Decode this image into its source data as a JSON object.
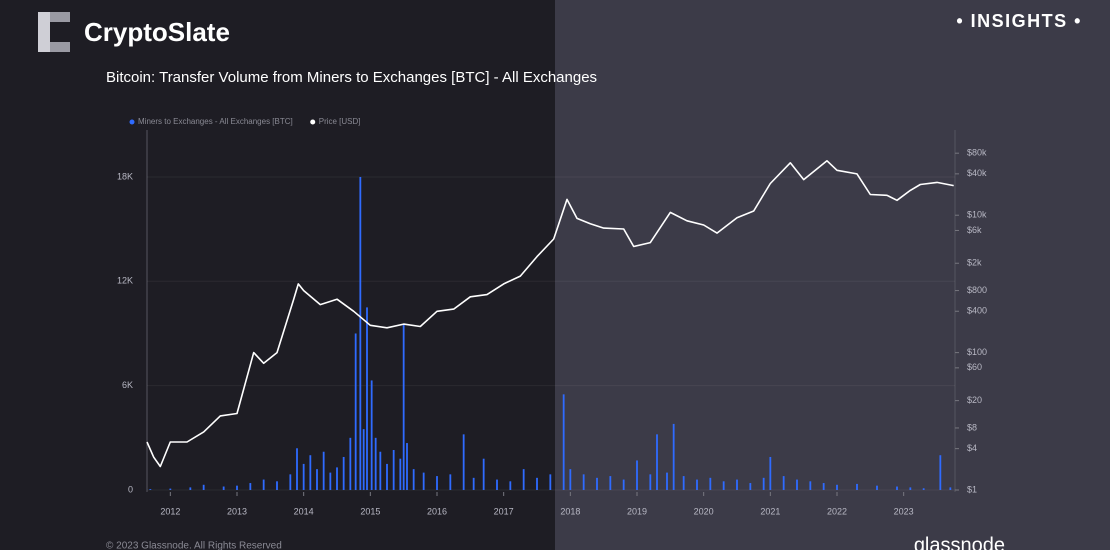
{
  "page": {
    "brand": "CryptoSlate",
    "badge": "• INSIGHTS •",
    "copyright": "© 2023 Glassnode. All Rights Reserved",
    "source": "glassnode"
  },
  "chart_data": {
    "type": "bar-line",
    "title": "Bitcoin: Transfer Volume from Miners to Exchanges [BTC] - All Exchanges",
    "xlim": [
      2011.65,
      2023.77
    ],
    "xticks": [
      2012,
      2013,
      2014,
      2015,
      2016,
      2017,
      2018,
      2019,
      2020,
      2021,
      2022,
      2023
    ],
    "ylim": [
      0,
      20700
    ],
    "yticks": [
      0,
      {
        "value": 6000,
        "label": "6K"
      },
      {
        "value": 12000,
        "label": "12K"
      },
      {
        "value": 18000,
        "label": "18K"
      }
    ],
    "y2lim": [
      1,
      174000
    ],
    "y2_log": true,
    "y2ticks": [
      {
        "value": 1,
        "label": "$1"
      },
      {
        "value": 4,
        "label": "$4"
      },
      {
        "value": 8,
        "label": "$8"
      },
      {
        "value": 20,
        "label": "$20"
      },
      {
        "value": 60,
        "label": "$60"
      },
      {
        "value": 100,
        "label": "$100"
      },
      {
        "value": 400,
        "label": "$400"
      },
      {
        "value": 800,
        "label": "$800"
      },
      {
        "value": 2000,
        "label": "$2k"
      },
      {
        "value": 6000,
        "label": "$6k"
      },
      {
        "value": 10000,
        "label": "$10k"
      },
      {
        "value": 40000,
        "label": "$40k"
      },
      {
        "value": 80000,
        "label": "$80k"
      }
    ],
    "grid": true,
    "series": [
      {
        "name": "Miners to Exchanges - All Exchanges [BTC]",
        "color": "#2f6bff",
        "kind": "bar",
        "x": [
          2011.7,
          2012.0,
          2012.3,
          2012.5,
          2012.8,
          2013.0,
          2013.2,
          2013.4,
          2013.6,
          2013.8,
          2013.9,
          2014.0,
          2014.1,
          2014.2,
          2014.3,
          2014.4,
          2014.5,
          2014.6,
          2014.7,
          2014.78,
          2014.85,
          2014.9,
          2014.95,
          2015.02,
          2015.08,
          2015.15,
          2015.25,
          2015.35,
          2015.45,
          2015.5,
          2015.55,
          2015.65,
          2015.8,
          2016.0,
          2016.2,
          2016.4,
          2016.55,
          2016.7,
          2016.9,
          2017.1,
          2017.3,
          2017.5,
          2017.7,
          2017.9,
          2018.0,
          2018.2,
          2018.4,
          2018.6,
          2018.8,
          2019.0,
          2019.2,
          2019.3,
          2019.45,
          2019.55,
          2019.7,
          2019.9,
          2020.1,
          2020.3,
          2020.5,
          2020.7,
          2020.9,
          2021.0,
          2021.2,
          2021.4,
          2021.6,
          2021.8,
          2022.0,
          2022.3,
          2022.6,
          2022.9,
          2023.1,
          2023.3,
          2023.55,
          2023.7
        ],
        "values": [
          50,
          80,
          150,
          300,
          200,
          250,
          400,
          600,
          500,
          900,
          2400,
          1500,
          2000,
          1200,
          2200,
          1000,
          1300,
          1900,
          3000,
          9000,
          18000,
          3500,
          10500,
          6300,
          3000,
          2200,
          1500,
          2300,
          1800,
          9500,
          2700,
          1200,
          1000,
          800,
          900,
          3200,
          700,
          1800,
          600,
          500,
          1200,
          700,
          900,
          5500,
          1200,
          900,
          700,
          800,
          600,
          1700,
          900,
          3200,
          1000,
          3800,
          800,
          600,
          700,
          500,
          600,
          400,
          700,
          1900,
          800,
          600,
          500,
          400,
          300,
          350,
          250,
          200,
          150,
          100,
          2000,
          150
        ]
      },
      {
        "name": "Price [USD]",
        "color": "#ffffff",
        "kind": "line",
        "axis": "y2",
        "x": [
          2011.65,
          2011.75,
          2011.85,
          2012.0,
          2012.25,
          2012.5,
          2012.75,
          2013.0,
          2013.25,
          2013.4,
          2013.6,
          2013.85,
          2013.92,
          2014.0,
          2014.25,
          2014.5,
          2014.75,
          2015.0,
          2015.25,
          2015.5,
          2015.75,
          2016.0,
          2016.25,
          2016.5,
          2016.75,
          2017.0,
          2017.25,
          2017.5,
          2017.75,
          2017.95,
          2018.1,
          2018.3,
          2018.5,
          2018.8,
          2018.95,
          2019.2,
          2019.5,
          2019.75,
          2020.0,
          2020.2,
          2020.5,
          2020.75,
          2021.0,
          2021.3,
          2021.5,
          2021.85,
          2022.0,
          2022.3,
          2022.5,
          2022.75,
          2022.9,
          2023.1,
          2023.25,
          2023.5,
          2023.75
        ],
        "values": [
          5,
          3,
          2.2,
          5,
          5,
          7,
          12,
          13,
          100,
          70,
          100,
          600,
          1000,
          800,
          500,
          600,
          400,
          250,
          230,
          260,
          240,
          400,
          430,
          650,
          700,
          1000,
          1300,
          2500,
          4500,
          17000,
          9000,
          7500,
          6500,
          6300,
          3500,
          4000,
          11000,
          8300,
          7200,
          5500,
          9200,
          11500,
          29000,
          58000,
          33000,
          62000,
          45000,
          40000,
          20000,
          19500,
          16500,
          23000,
          28000,
          30000,
          27000
        ]
      }
    ]
  }
}
